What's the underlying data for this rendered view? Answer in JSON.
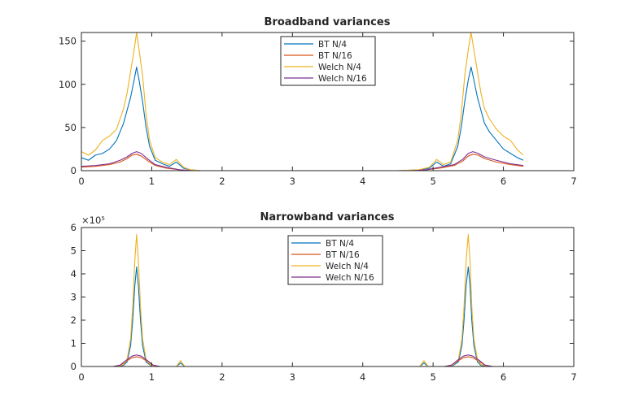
{
  "colors": {
    "axis": "#262626",
    "series": [
      "#0072BD",
      "#D95319",
      "#EDB120",
      "#7E2F8E"
    ]
  },
  "chart_data": [
    {
      "type": "line",
      "title": "Broadband variances",
      "xlabel": "",
      "ylabel": "",
      "xlim": [
        0,
        7
      ],
      "ylim": [
        0,
        160
      ],
      "xticks": [
        0,
        1,
        2,
        3,
        4,
        5,
        6,
        7
      ],
      "yticks": [
        0,
        50,
        100,
        150
      ],
      "exponent_label": "",
      "grid": false,
      "legend": "top-center",
      "series": [
        {
          "name": "BT N/4",
          "x": [
            0,
            0.1,
            0.2,
            0.3,
            0.4,
            0.5,
            0.55,
            0.6,
            0.65,
            0.7,
            0.75,
            0.785,
            0.82,
            0.87,
            0.92,
            0.97,
            1.05,
            1.15,
            1.25,
            1.35,
            1.45,
            1.55,
            1.7,
            2.5,
            3.5,
            4.5,
            4.8,
            4.95,
            5.05,
            5.15,
            5.25,
            5.35,
            5.4,
            5.45,
            5.5,
            5.54,
            5.58,
            5.63,
            5.68,
            5.73,
            5.8,
            5.9,
            6.0,
            6.1,
            6.2,
            6.283
          ],
          "values": [
            15,
            12,
            18,
            20,
            25,
            35,
            45,
            55,
            70,
            85,
            105,
            120,
            105,
            80,
            50,
            28,
            12,
            8,
            5,
            10,
            3,
            1,
            0,
            0,
            0,
            0,
            1,
            3,
            10,
            5,
            8,
            28,
            50,
            80,
            105,
            120,
            105,
            85,
            70,
            55,
            45,
            35,
            25,
            20,
            15,
            12
          ]
        },
        {
          "name": "BT N/16",
          "x": [
            0,
            0.2,
            0.4,
            0.55,
            0.65,
            0.72,
            0.785,
            0.85,
            0.95,
            1.05,
            1.2,
            1.4,
            1.6,
            2.5,
            3.5,
            4.5,
            4.7,
            4.9,
            5.1,
            5.3,
            5.42,
            5.5,
            5.565,
            5.64,
            5.73,
            5.9,
            6.1,
            6.283
          ],
          "values": [
            4,
            5,
            7,
            10,
            14,
            18,
            19,
            17,
            11,
            6,
            3,
            1,
            0,
            0,
            0,
            0,
            0,
            1,
            3,
            6,
            11,
            17,
            19,
            18,
            14,
            10,
            7,
            5
          ]
        },
        {
          "name": "Welch N/4",
          "x": [
            0,
            0.1,
            0.2,
            0.3,
            0.4,
            0.5,
            0.55,
            0.6,
            0.65,
            0.7,
            0.75,
            0.785,
            0.82,
            0.87,
            0.92,
            0.97,
            1.05,
            1.15,
            1.25,
            1.35,
            1.45,
            1.55,
            1.7,
            2.5,
            3.5,
            4.5,
            4.8,
            4.95,
            5.05,
            5.15,
            5.25,
            5.35,
            5.4,
            5.45,
            5.5,
            5.54,
            5.58,
            5.63,
            5.68,
            5.73,
            5.8,
            5.9,
            6.0,
            6.1,
            6.2,
            6.283
          ],
          "values": [
            22,
            18,
            24,
            35,
            40,
            48,
            60,
            72,
            90,
            115,
            140,
            160,
            140,
            110,
            65,
            35,
            15,
            10,
            7,
            13,
            4,
            1,
            0,
            0,
            0,
            0,
            1,
            4,
            13,
            7,
            10,
            35,
            65,
            110,
            140,
            160,
            140,
            115,
            90,
            72,
            60,
            48,
            40,
            35,
            24,
            18
          ]
        },
        {
          "name": "Welch N/16",
          "x": [
            0,
            0.2,
            0.4,
            0.55,
            0.65,
            0.72,
            0.785,
            0.85,
            0.95,
            1.05,
            1.2,
            1.4,
            1.6,
            2.5,
            3.5,
            4.5,
            4.7,
            4.9,
            5.1,
            5.3,
            5.42,
            5.5,
            5.565,
            5.64,
            5.73,
            5.9,
            6.1,
            6.283
          ],
          "values": [
            5,
            6,
            8,
            12,
            16,
            20,
            22,
            20,
            13,
            7,
            4,
            1,
            0,
            0,
            0,
            0,
            0,
            1,
            4,
            7,
            13,
            20,
            22,
            20,
            16,
            12,
            8,
            6
          ]
        }
      ]
    },
    {
      "type": "line",
      "title": "Narrowband variances",
      "xlabel": "",
      "ylabel": "",
      "xlim": [
        0,
        7
      ],
      "ylim": [
        0,
        6
      ],
      "xticks": [
        0,
        1,
        2,
        3,
        4,
        5,
        6,
        7
      ],
      "yticks": [
        0,
        1,
        2,
        3,
        4,
        5,
        6
      ],
      "exponent_label": "×10⁵",
      "grid": false,
      "legend": "top-center",
      "series": [
        {
          "name": "BT N/4",
          "x": [
            0,
            0.5,
            0.6,
            0.65,
            0.7,
            0.73,
            0.76,
            0.785,
            0.81,
            0.84,
            0.87,
            0.92,
            1.0,
            1.35,
            1.41,
            1.47,
            1.6,
            4.65,
            4.81,
            4.87,
            4.93,
            5.26,
            5.36,
            5.41,
            5.44,
            5.47,
            5.5,
            5.525,
            5.55,
            5.58,
            5.63,
            5.68,
            5.8,
            6.283
          ],
          "values": [
            0,
            0,
            0.05,
            0.2,
            0.9,
            2.0,
            3.5,
            4.3,
            3.5,
            2.0,
            0.9,
            0.2,
            0,
            0,
            0.15,
            0,
            0,
            0,
            0,
            0.15,
            0,
            0,
            0.2,
            0.9,
            2.0,
            3.5,
            4.3,
            3.5,
            2.0,
            0.9,
            0.2,
            0.05,
            0,
            0
          ]
        },
        {
          "name": "BT N/16",
          "x": [
            0,
            0.45,
            0.55,
            0.65,
            0.72,
            0.785,
            0.85,
            0.92,
            1.02,
            1.12,
            4.4,
            5.16,
            5.26,
            5.36,
            5.43,
            5.5,
            5.565,
            5.64,
            5.74,
            5.85,
            6.283
          ],
          "values": [
            0,
            0,
            0.05,
            0.25,
            0.38,
            0.42,
            0.38,
            0.25,
            0.05,
            0,
            0,
            0,
            0.05,
            0.25,
            0.38,
            0.42,
            0.38,
            0.25,
            0.05,
            0,
            0
          ]
        },
        {
          "name": "Welch N/4",
          "x": [
            0,
            0.5,
            0.6,
            0.65,
            0.7,
            0.73,
            0.76,
            0.785,
            0.81,
            0.84,
            0.87,
            0.92,
            1.0,
            1.35,
            1.41,
            1.47,
            1.6,
            4.65,
            4.81,
            4.87,
            4.93,
            5.26,
            5.36,
            5.41,
            5.44,
            5.47,
            5.5,
            5.525,
            5.55,
            5.58,
            5.63,
            5.68,
            5.8,
            6.283
          ],
          "values": [
            0,
            0,
            0.08,
            0.3,
            1.2,
            2.6,
            4.6,
            5.7,
            4.6,
            2.6,
            1.2,
            0.3,
            0,
            0,
            0.25,
            0,
            0,
            0,
            0,
            0.25,
            0,
            0,
            0.3,
            1.2,
            2.6,
            4.6,
            5.7,
            4.6,
            2.6,
            1.2,
            0.3,
            0.08,
            0,
            0
          ]
        },
        {
          "name": "Welch N/16",
          "x": [
            0,
            0.45,
            0.55,
            0.65,
            0.72,
            0.785,
            0.85,
            0.92,
            1.02,
            1.12,
            4.4,
            5.16,
            5.26,
            5.36,
            5.43,
            5.5,
            5.565,
            5.64,
            5.74,
            5.85,
            6.283
          ],
          "values": [
            0,
            0,
            0.06,
            0.3,
            0.45,
            0.5,
            0.45,
            0.3,
            0.06,
            0,
            0,
            0,
            0.06,
            0.3,
            0.45,
            0.5,
            0.45,
            0.3,
            0.06,
            0,
            0
          ]
        }
      ]
    }
  ]
}
